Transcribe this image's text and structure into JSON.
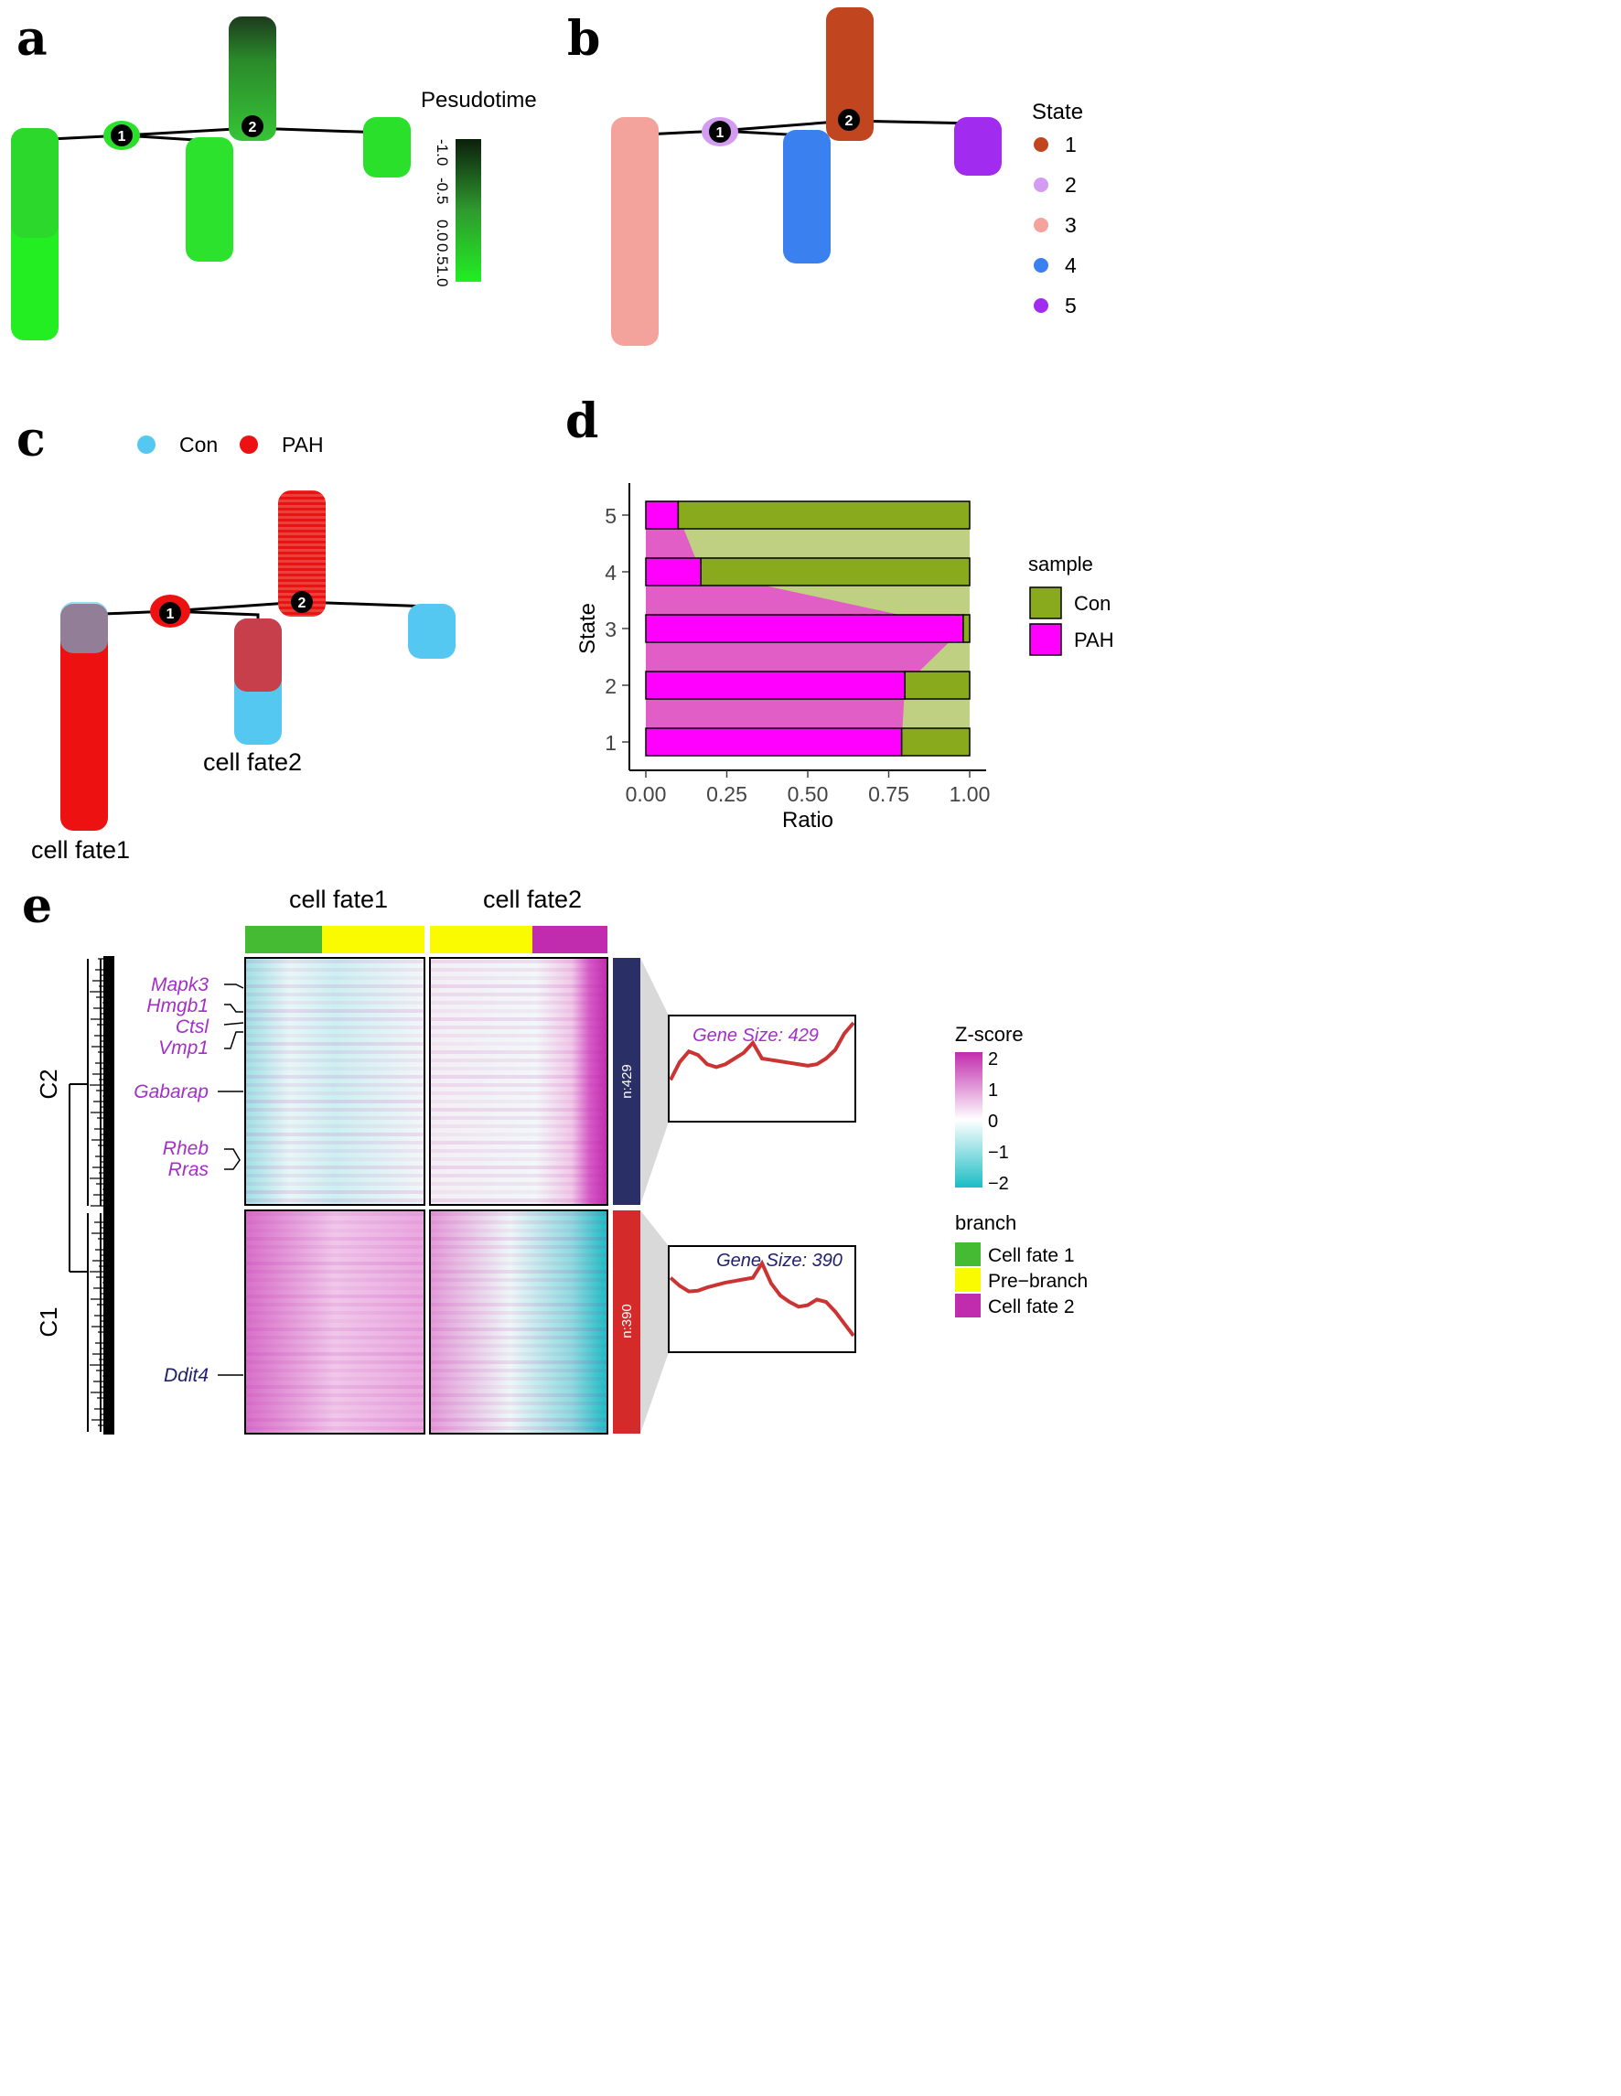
{
  "panels": {
    "a": {
      "letter": "a",
      "legend_title": "Pesudotime",
      "ticks": [
        "-1.0",
        "-0.5",
        "0.0",
        "0.5",
        "1.0"
      ],
      "node_labels": [
        "1",
        "2"
      ],
      "colors": {
        "dark": "#0b1f0b",
        "mid": "#2f9a2f",
        "light": "#22ee22"
      }
    },
    "b": {
      "letter": "b",
      "legend_title": "State",
      "node_labels": [
        "1",
        "2"
      ],
      "states": [
        {
          "label": "1",
          "color": "#c1461f"
        },
        {
          "label": "2",
          "color": "#d49cf0"
        },
        {
          "label": "3",
          "color": "#f4a39c"
        },
        {
          "label": "4",
          "color": "#3a80ef"
        },
        {
          "label": "5",
          "color": "#a12cf0"
        }
      ]
    },
    "c": {
      "letter": "c",
      "legend": [
        {
          "label": "Con",
          "color": "#55c8f2"
        },
        {
          "label": "PAH",
          "color": "#ee1111"
        }
      ],
      "node_labels": [
        "1",
        "2"
      ],
      "annotations": [
        "cell fate2",
        "cell fate1"
      ]
    },
    "d": {
      "letter": "d"
    },
    "e": {
      "letter": "e",
      "columns": [
        "cell fate1",
        "cell fate2"
      ],
      "cluster_labels": [
        "C2",
        "C1"
      ],
      "gene_labels_c2": [
        "Mapk3",
        "Hmgb1",
        "Ctsl",
        "Vmp1",
        "Gabarap",
        "Rheb",
        "Rras"
      ],
      "gene_labels_c1": [
        "Ddit4"
      ],
      "cluster_bars": [
        {
          "label": "n:429",
          "color": "#2a2f66"
        },
        {
          "label": "n:390",
          "color": "#d42a2a"
        }
      ],
      "gene_size": [
        {
          "label": "Gene Size: 429",
          "color": "#a22fc8"
        },
        {
          "label": "Gene Size: 390",
          "color": "#20206e"
        }
      ],
      "zscore": {
        "title": "Z-score",
        "ticks": [
          "2",
          "1",
          "0",
          "−1",
          "−2"
        ]
      },
      "branch": {
        "title": "branch",
        "items": [
          {
            "label": "Cell fate 1",
            "color": "#44bb33"
          },
          {
            "label": "Pre−branch",
            "color": "#fafa00"
          },
          {
            "label": "Cell fate 2",
            "color": "#c12cae"
          }
        ]
      },
      "colors": {
        "magenta": "#c12cae",
        "teal": "#1bbdc4",
        "green": "#44bb33",
        "yellow": "#fafa00",
        "curve": "#cc3333"
      }
    }
  },
  "chart_data": [
    {
      "type": "bar",
      "title": "",
      "xlabel": "Ratio",
      "ylabel": "State",
      "categories": [
        "1",
        "2",
        "3",
        "4",
        "5"
      ],
      "xlim": [
        0,
        1
      ],
      "x_ticks": [
        "0.00",
        "0.25",
        "0.50",
        "0.75",
        "1.00"
      ],
      "stacked": true,
      "orientation": "horizontal",
      "legend_title": "sample",
      "legend_position": "right",
      "series": [
        {
          "name": "PAH",
          "color": "#ff00ff",
          "values": [
            0.79,
            0.8,
            0.98,
            0.17,
            0.1
          ]
        },
        {
          "name": "Con",
          "color": "#8aaa1e",
          "values": [
            0.21,
            0.2,
            0.02,
            0.83,
            0.9
          ]
        }
      ]
    },
    {
      "type": "line",
      "title": "Gene Size: 429",
      "x": [
        0,
        0.05,
        0.1,
        0.15,
        0.2,
        0.25,
        0.3,
        0.35,
        0.4,
        0.45,
        0.5,
        0.55,
        0.6,
        0.65,
        0.7,
        0.75,
        0.8,
        0.85,
        0.9,
        0.95,
        1.0
      ],
      "y": [
        0.2,
        0.45,
        0.6,
        0.55,
        0.42,
        0.38,
        0.42,
        0.5,
        0.58,
        0.72,
        0.5,
        0.48,
        0.46,
        0.44,
        0.42,
        0.4,
        0.42,
        0.5,
        0.62,
        0.85,
        1.0
      ],
      "color": "#cc3333"
    },
    {
      "type": "line",
      "title": "Gene Size: 390",
      "x": [
        0,
        0.05,
        0.1,
        0.15,
        0.2,
        0.25,
        0.3,
        0.35,
        0.4,
        0.45,
        0.5,
        0.55,
        0.6,
        0.65,
        0.7,
        0.75,
        0.8,
        0.85,
        0.9,
        0.95,
        1.0
      ],
      "y": [
        0.72,
        0.62,
        0.55,
        0.56,
        0.6,
        0.63,
        0.66,
        0.68,
        0.7,
        0.72,
        0.9,
        0.65,
        0.5,
        0.42,
        0.36,
        0.38,
        0.45,
        0.42,
        0.3,
        0.15,
        0.0
      ],
      "color": "#cc3333"
    }
  ]
}
